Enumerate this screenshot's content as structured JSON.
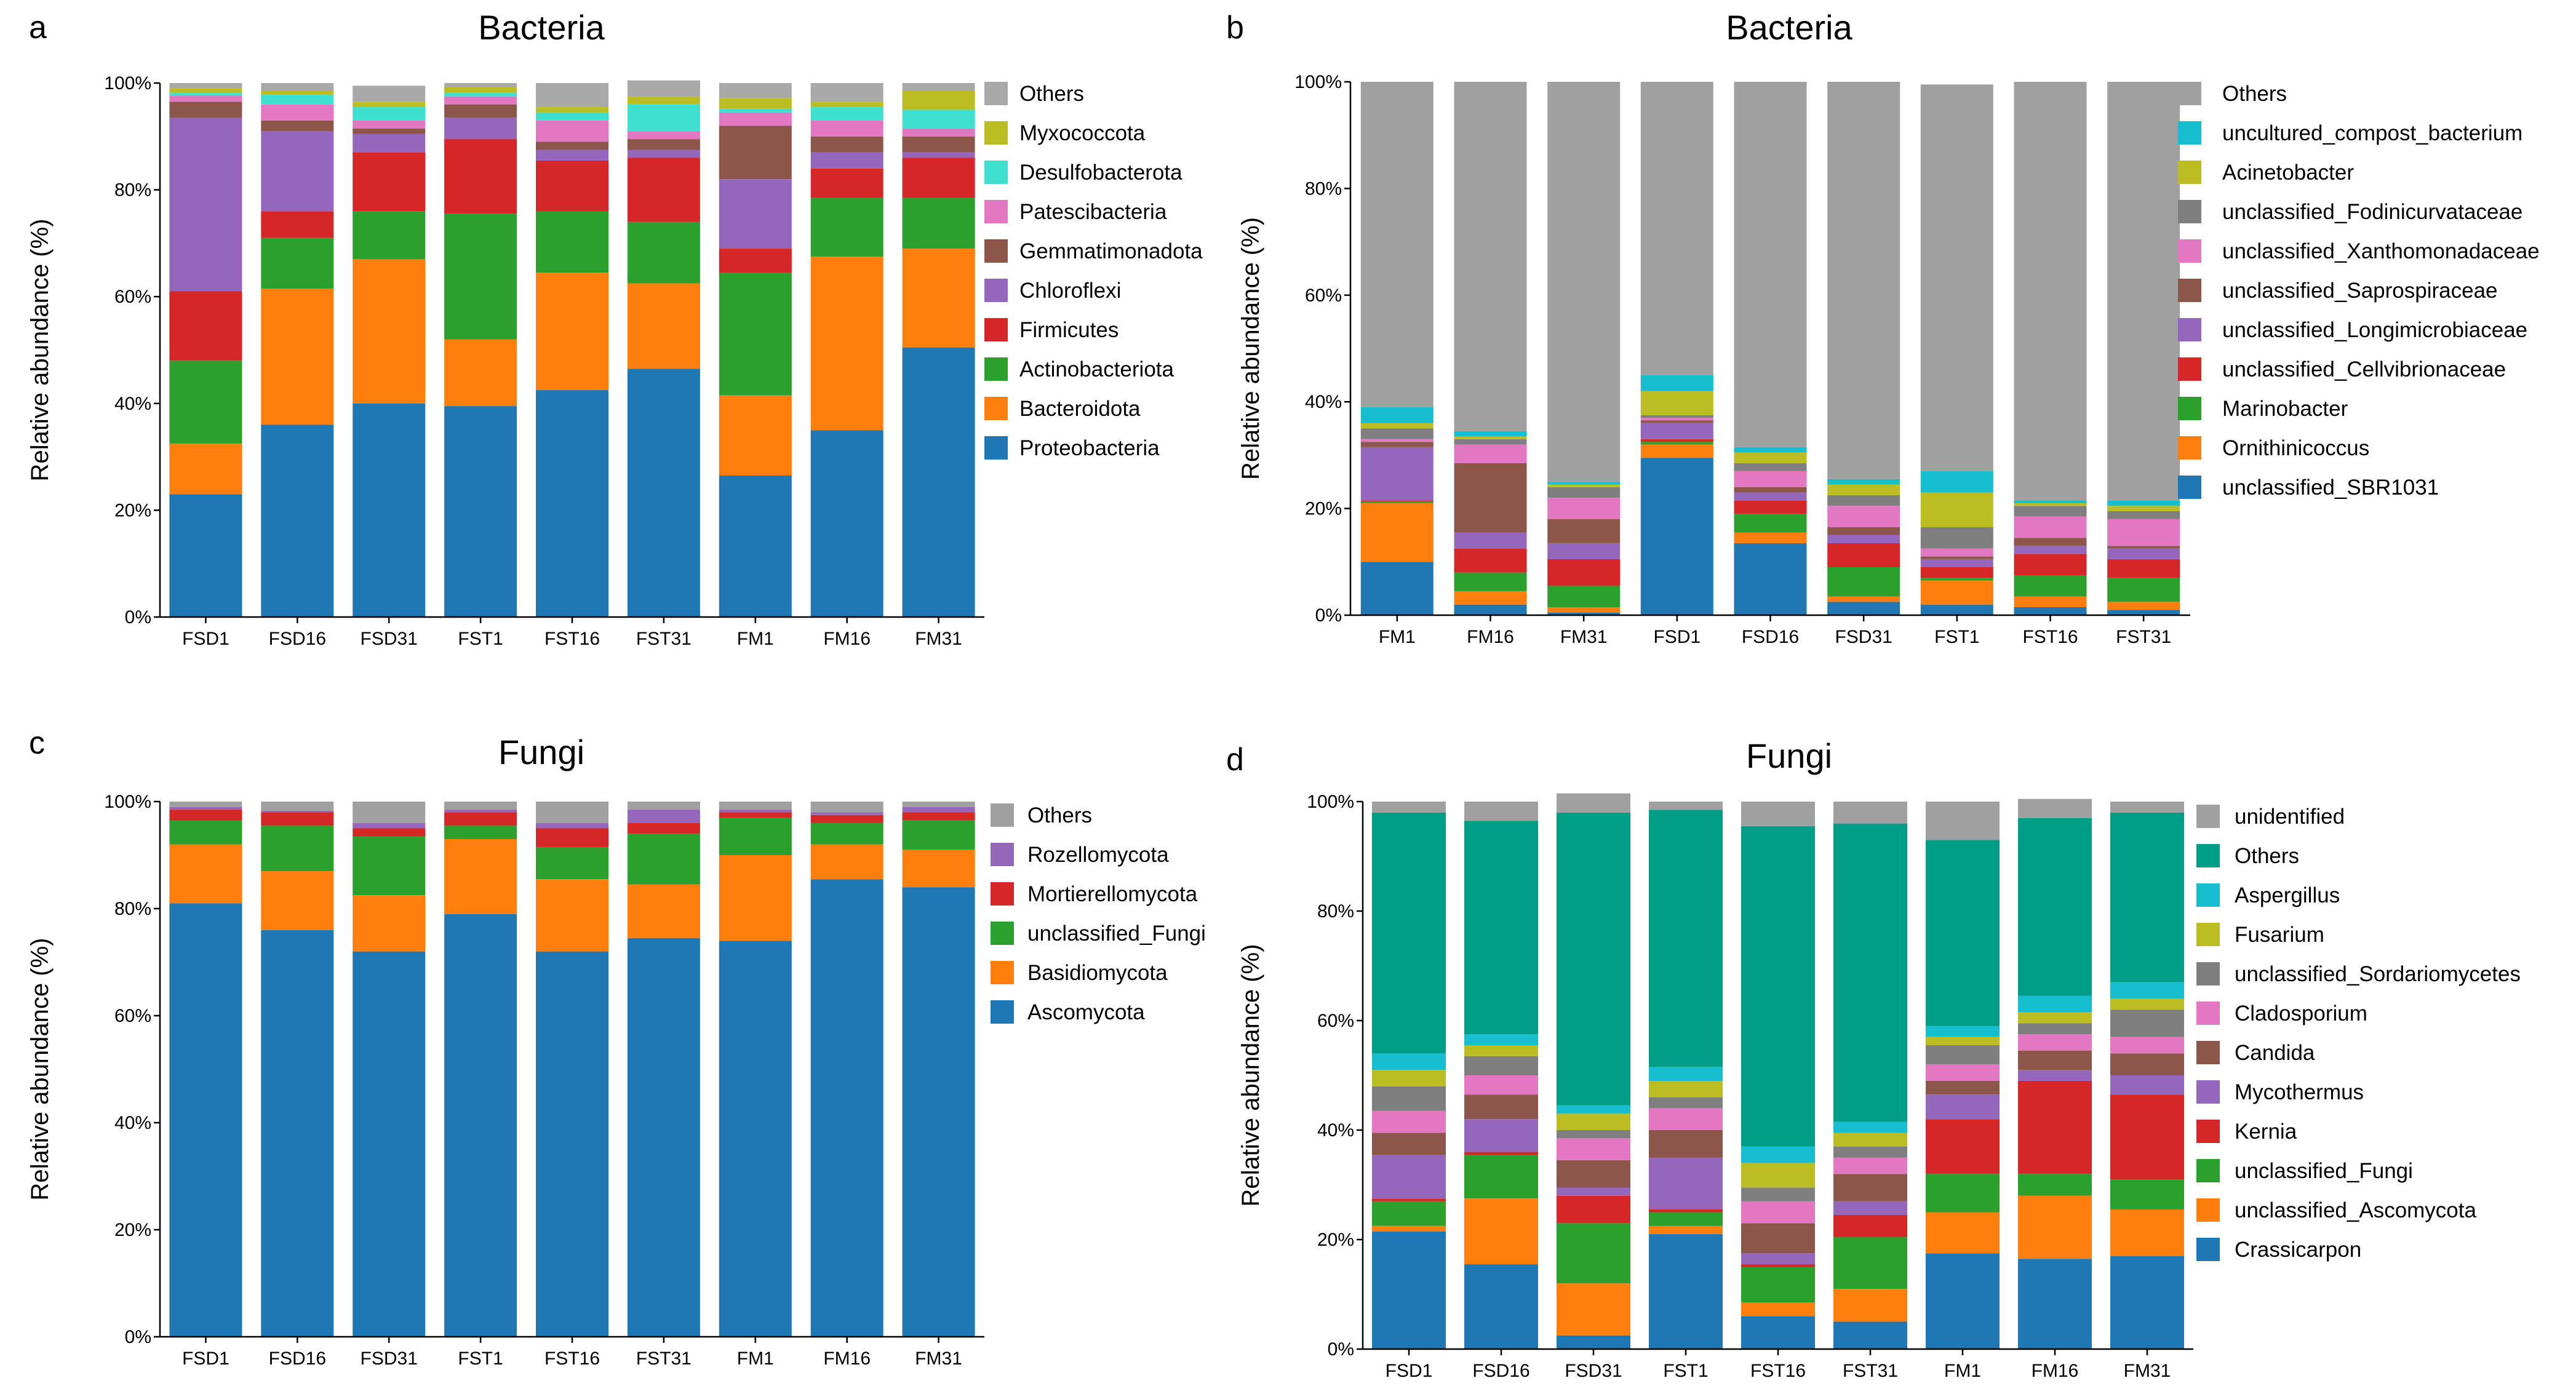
{
  "chart_data": [
    {
      "panel": "a",
      "type": "stacked-bar",
      "title": "Bacteria",
      "ylabel": "Relative abundance (%)",
      "ylim": [
        0,
        100
      ],
      "yticks": [
        "0%",
        "20%",
        "40%",
        "60%",
        "80%",
        "100%"
      ],
      "categories": [
        "FSD1",
        "FSD16",
        "FSD31",
        "FST1",
        "FST16",
        "FST31",
        "FM1",
        "FM16",
        "FM31"
      ],
      "series": [
        {
          "name": "Proteobacteria",
          "color": "#1f77b4",
          "values": [
            23,
            36,
            40,
            39.5,
            42.5,
            46.5,
            26.5,
            35,
            50.5
          ]
        },
        {
          "name": "Bacteroidota",
          "color": "#ff7f0e",
          "values": [
            9.5,
            25.5,
            27,
            12.5,
            22,
            16,
            15,
            32.5,
            18.5
          ]
        },
        {
          "name": "Actinobacteriota",
          "color": "#2ca02c",
          "values": [
            15.5,
            9.5,
            9,
            23.5,
            11.5,
            11.5,
            23,
            11,
            9.5
          ]
        },
        {
          "name": "Firmicutes",
          "color": "#d62728",
          "values": [
            13,
            5,
            11,
            14,
            9.5,
            12,
            4.5,
            5.5,
            7.5
          ]
        },
        {
          "name": "Chloroflexi",
          "color": "#9467bd",
          "values": [
            32.5,
            15,
            3.5,
            4,
            2,
            1.5,
            13,
            3,
            1
          ]
        },
        {
          "name": "Gemmatimonadota",
          "color": "#8c564b",
          "values": [
            3,
            2,
            1,
            2.5,
            1.5,
            2,
            10,
            3,
            3
          ]
        },
        {
          "name": "Patescibacteria",
          "color": "#e377c2",
          "values": [
            1.2,
            3,
            1.5,
            1.5,
            4,
            1.5,
            2.5,
            3,
            1.5
          ]
        },
        {
          "name": "Desulfobacterota",
          "color": "#40e0d0",
          "values": [
            0.5,
            1.8,
            2.5,
            0.7,
            1.5,
            5,
            0.7,
            2.5,
            3.5
          ]
        },
        {
          "name": "Myxococcota",
          "color": "#bcbd22",
          "values": [
            0.8,
            0.7,
            1,
            1,
            1,
            1.5,
            2,
            1,
            3.5
          ]
        },
        {
          "name": "Others",
          "color": "#a9a9a9",
          "values": [
            1,
            1.5,
            3,
            0.8,
            4.5,
            3,
            2.8,
            3.5,
            1.5
          ]
        }
      ]
    },
    {
      "panel": "b",
      "type": "stacked-bar",
      "title": "Bacteria",
      "ylabel": "Relative abundance (%)",
      "ylim": [
        0,
        100
      ],
      "yticks": [
        "0%",
        "20%",
        "40%",
        "60%",
        "80%",
        "100%"
      ],
      "categories": [
        "FM1",
        "FM16",
        "FM31",
        "FSD1",
        "FSD16",
        "FSD31",
        "FST1",
        "FST16",
        "FST31"
      ],
      "series": [
        {
          "name": "unclassified_SBR1031",
          "color": "#1f77b4",
          "values": [
            10,
            2,
            0.5,
            29.5,
            13.5,
            2.5,
            2,
            1.5,
            1
          ]
        },
        {
          "name": "Ornithinicoccus",
          "color": "#ff7f0e",
          "values": [
            11,
            2.5,
            1,
            2.5,
            2,
            1,
            4.5,
            2,
            1.5
          ]
        },
        {
          "name": "Marinobacter",
          "color": "#2ca02c",
          "values": [
            0.3,
            3.5,
            4,
            0.5,
            3.5,
            5.5,
            0.5,
            4,
            4.5
          ]
        },
        {
          "name": "unclassified_Cellvibrionaceae",
          "color": "#d62728",
          "values": [
            0.2,
            4.5,
            5,
            0.5,
            2.5,
            4.5,
            2,
            4,
            3.5
          ]
        },
        {
          "name": "unclassified_Longimicrobiaceae",
          "color": "#9467bd",
          "values": [
            10,
            3,
            3,
            3,
            1.5,
            1.5,
            1.5,
            1.5,
            2
          ]
        },
        {
          "name": "unclassified_Saprospiraceae",
          "color": "#8c564b",
          "values": [
            1,
            13,
            4.5,
            0.5,
            1,
            1.5,
            0.5,
            1.5,
            0.5
          ]
        },
        {
          "name": "unclassified_Xanthomonadaceae",
          "color": "#e377c2",
          "values": [
            0.5,
            3.5,
            4,
            0.5,
            3,
            4,
            1.5,
            4,
            5
          ]
        },
        {
          "name": "unclassified_Fodinicurvataceae",
          "color": "#7f7f7f",
          "values": [
            2,
            1,
            2,
            0.5,
            1.5,
            2,
            4,
            2,
            1.5
          ]
        },
        {
          "name": "Acinetobacter",
          "color": "#bcbd22",
          "values": [
            1,
            0.5,
            0.5,
            4.5,
            2,
            2,
            6.5,
            0.5,
            1
          ]
        },
        {
          "name": "uncultured_compost_bacterium",
          "color": "#17becf",
          "values": [
            3,
            1,
            0.5,
            3,
            1,
            1,
            4,
            0.5,
            1
          ]
        },
        {
          "name": "Others",
          "color": "#a0a0a0",
          "values": [
            61,
            65.5,
            75,
            55,
            68.5,
            74.5,
            72.5,
            78.5,
            78.5
          ]
        }
      ]
    },
    {
      "panel": "c",
      "type": "stacked-bar",
      "title": "Fungi",
      "ylabel": "Relative abundance (%)",
      "ylim": [
        0,
        100
      ],
      "yticks": [
        "0%",
        "20%",
        "40%",
        "60%",
        "80%",
        "100%"
      ],
      "categories": [
        "FSD1",
        "FSD16",
        "FSD31",
        "FST1",
        "FST16",
        "FST31",
        "FM1",
        "FM16",
        "FM31"
      ],
      "series": [
        {
          "name": "Ascomycota",
          "color": "#1f77b4",
          "values": [
            81,
            76,
            72,
            79,
            72,
            74.5,
            74,
            85.5,
            84
          ]
        },
        {
          "name": "Basidiomycota",
          "color": "#ff7f0e",
          "values": [
            11,
            11,
            10.5,
            14,
            13.5,
            10,
            16,
            6.5,
            7
          ]
        },
        {
          "name": "unclassified_Fungi",
          "color": "#2ca02c",
          "values": [
            4.5,
            8.5,
            11,
            2.5,
            6,
            9.5,
            7,
            4,
            5.5
          ]
        },
        {
          "name": "Mortierellomycota",
          "color": "#d62728",
          "values": [
            2,
            2.5,
            1.5,
            2.5,
            3.5,
            2,
            1,
            1.5,
            1.5
          ]
        },
        {
          "name": "Rozellomycota",
          "color": "#9467bd",
          "values": [
            0.5,
            0.3,
            1,
            0.5,
            1,
            2.5,
            0.5,
            0.5,
            1
          ]
        },
        {
          "name": "Others",
          "color": "#a0a0a0",
          "values": [
            1,
            1.7,
            4,
            1.5,
            4,
            1.5,
            1.5,
            2,
            1
          ]
        }
      ]
    },
    {
      "panel": "d",
      "type": "stacked-bar",
      "title": "Fungi",
      "ylabel": "Relative abundance (%)",
      "ylim": [
        0,
        100
      ],
      "yticks": [
        "0%",
        "20%",
        "40%",
        "60%",
        "80%",
        "100%"
      ],
      "categories": [
        "FSD1",
        "FSD16",
        "FSD31",
        "FST1",
        "FST16",
        "FST31",
        "FM1",
        "FM16",
        "FM31"
      ],
      "series": [
        {
          "name": "Crassicarpon",
          "color": "#1f77b4",
          "values": [
            21.5,
            15.5,
            2.5,
            21,
            6,
            5,
            17.5,
            16.5,
            17
          ]
        },
        {
          "name": "unclassified_Ascomycota",
          "color": "#ff7f0e",
          "values": [
            1,
            12,
            9.5,
            1.5,
            2.5,
            6,
            7.5,
            11.5,
            8.5
          ]
        },
        {
          "name": "unclassified_Fungi",
          "color": "#2ca02c",
          "values": [
            4.5,
            8,
            11,
            2.5,
            6.5,
            9.5,
            7,
            4,
            5.5
          ]
        },
        {
          "name": "Kernia",
          "color": "#d62728",
          "values": [
            0.5,
            0.5,
            5,
            0.5,
            0.5,
            4,
            10,
            17,
            15.5
          ]
        },
        {
          "name": "Mycothermus",
          "color": "#9467bd",
          "values": [
            8,
            6,
            1.5,
            9.5,
            2,
            2.5,
            4.5,
            2,
            3.5
          ]
        },
        {
          "name": "Candida",
          "color": "#8c564b",
          "values": [
            4,
            4.5,
            5,
            5,
            5.5,
            5,
            2.5,
            3.5,
            4
          ]
        },
        {
          "name": "Cladosporium",
          "color": "#e377c2",
          "values": [
            4,
            3.5,
            4,
            4,
            4,
            3,
            3,
            3,
            3
          ]
        },
        {
          "name": "unclassified_Sordariomycetes",
          "color": "#7f7f7f",
          "values": [
            4.5,
            3.5,
            1.5,
            2,
            2.5,
            2,
            3.5,
            2,
            5
          ]
        },
        {
          "name": "Fusarium",
          "color": "#bcbd22",
          "values": [
            3,
            2,
            3,
            3,
            4.5,
            2.5,
            1.5,
            2,
            2
          ]
        },
        {
          "name": "Aspergillus",
          "color": "#17becf",
          "values": [
            3,
            2,
            1.5,
            2.5,
            3,
            2,
            2,
            3,
            3
          ]
        },
        {
          "name": "Others",
          "color": "#009e86",
          "values": [
            44,
            39,
            53.5,
            47,
            58.5,
            54.5,
            34,
            32.5,
            31
          ]
        },
        {
          "name": "unidentified",
          "color": "#a0a0a0",
          "values": [
            2,
            3.5,
            3.5,
            1.5,
            4.5,
            4,
            7,
            3.5,
            2
          ]
        }
      ]
    }
  ]
}
